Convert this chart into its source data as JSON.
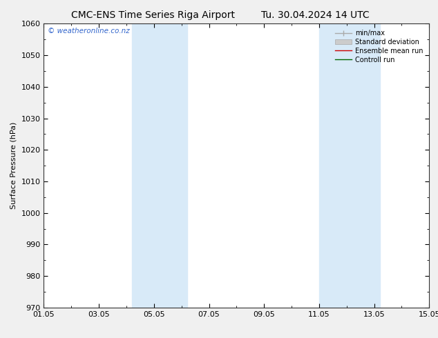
{
  "title_left": "CMC-ENS Time Series Riga Airport",
  "title_right": "Tu. 30.04.2024 14 UTC",
  "ylabel": "Surface Pressure (hPa)",
  "ylim": [
    970,
    1060
  ],
  "yticks": [
    970,
    980,
    990,
    1000,
    1010,
    1020,
    1030,
    1040,
    1050,
    1060
  ],
  "xlim": [
    0,
    14
  ],
  "xtick_positions": [
    0,
    2,
    4,
    6,
    8,
    10,
    12,
    14
  ],
  "xtick_labels": [
    "01.05",
    "03.05",
    "05.05",
    "07.05",
    "09.05",
    "11.05",
    "13.05",
    "15.05"
  ],
  "shaded_bands": [
    {
      "x_start": 3.2,
      "x_end": 5.2
    },
    {
      "x_start": 10.0,
      "x_end": 12.2
    }
  ],
  "shade_color": "#d8eaf8",
  "watermark": "© weatheronline.co.nz",
  "background_color": "#f0f0f0",
  "plot_bg_color": "#ffffff",
  "legend_labels": [
    "min/max",
    "Standard deviation",
    "Ensemble mean run",
    "Controll run"
  ],
  "title_fontsize": 10,
  "axis_fontsize": 8,
  "tick_fontsize": 8,
  "watermark_color": "#3366cc"
}
